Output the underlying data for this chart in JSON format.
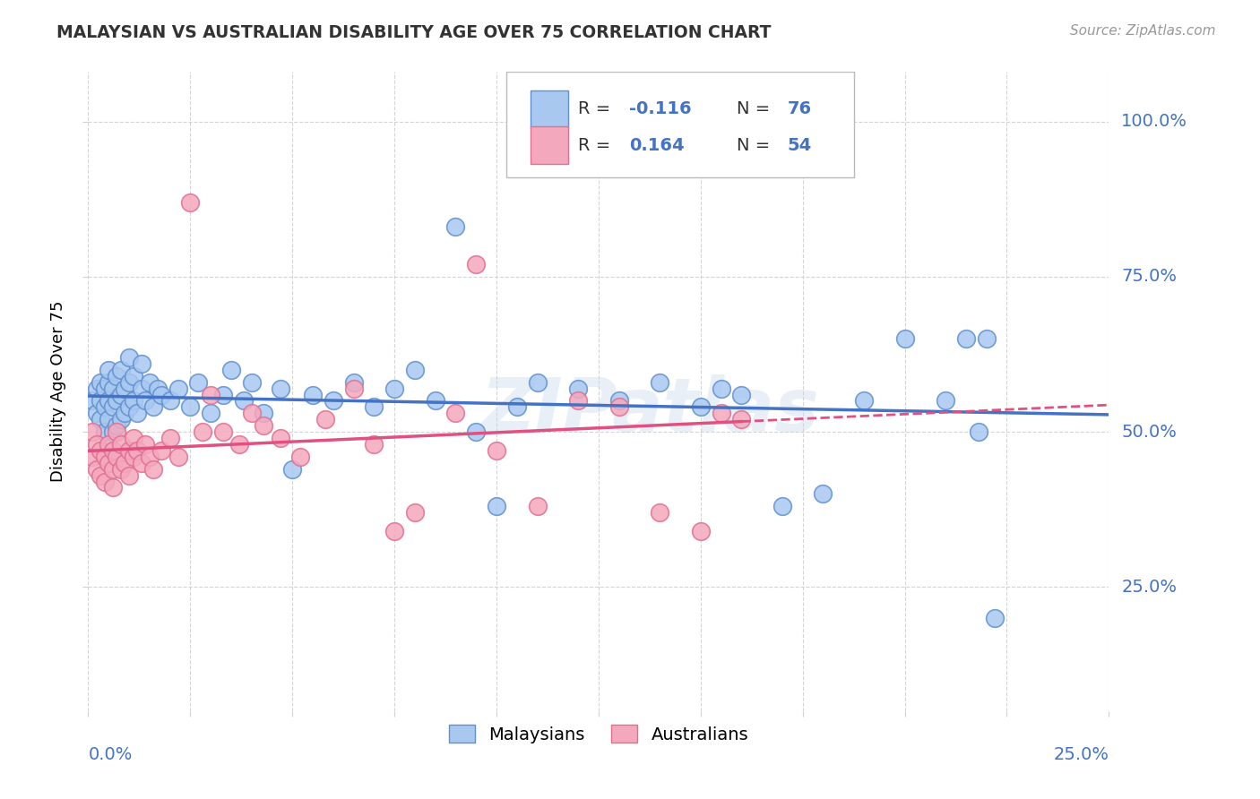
{
  "title": "MALAYSIAN VS AUSTRALIAN DISABILITY AGE OVER 75 CORRELATION CHART",
  "source": "Source: ZipAtlas.com",
  "ylabel": "Disability Age Over 75",
  "ytick_labels": [
    "100.0%",
    "75.0%",
    "50.0%",
    "25.0%"
  ],
  "ytick_values": [
    1.0,
    0.75,
    0.5,
    0.25
  ],
  "xmin": 0.0,
  "xmax": 0.25,
  "ymin": 0.05,
  "ymax": 1.08,
  "malaysian_color": "#a8c8f0",
  "australian_color": "#f4a8be",
  "malaysian_edge_color": "#6090d0",
  "australian_edge_color": "#e07090",
  "malaysian_line_color": "#4472c4",
  "australian_line_color": "#e05080",
  "legend_text_color": "#4472c4",
  "malaysian_R": -0.116,
  "malaysian_N": 76,
  "australian_R": 0.164,
  "australian_N": 54,
  "watermark": "ZIPatlas",
  "background_color": "#ffffff",
  "grid_color": "#d0d0d0",
  "ytick_color": "#4472c4",
  "malaysian_x": [
    0.001,
    0.002,
    0.002,
    0.003,
    0.003,
    0.003,
    0.004,
    0.004,
    0.004,
    0.005,
    0.005,
    0.005,
    0.005,
    0.006,
    0.006,
    0.006,
    0.007,
    0.007,
    0.007,
    0.008,
    0.008,
    0.008,
    0.009,
    0.009,
    0.01,
    0.01,
    0.01,
    0.011,
    0.011,
    0.012,
    0.013,
    0.013,
    0.014,
    0.015,
    0.016,
    0.017,
    0.018,
    0.02,
    0.022,
    0.025,
    0.027,
    0.03,
    0.033,
    0.035,
    0.038,
    0.04,
    0.043,
    0.047,
    0.05,
    0.055,
    0.06,
    0.065,
    0.07,
    0.075,
    0.08,
    0.085,
    0.09,
    0.095,
    0.1,
    0.105,
    0.11,
    0.12,
    0.13,
    0.14,
    0.15,
    0.155,
    0.16,
    0.17,
    0.18,
    0.19,
    0.2,
    0.21,
    0.215,
    0.218,
    0.22,
    0.222
  ],
  "malaysian_y": [
    0.55,
    0.57,
    0.53,
    0.55,
    0.52,
    0.58,
    0.5,
    0.54,
    0.57,
    0.52,
    0.55,
    0.58,
    0.6,
    0.5,
    0.54,
    0.57,
    0.51,
    0.55,
    0.59,
    0.52,
    0.56,
    0.6,
    0.53,
    0.57,
    0.54,
    0.58,
    0.62,
    0.55,
    0.59,
    0.53,
    0.57,
    0.61,
    0.55,
    0.58,
    0.54,
    0.57,
    0.56,
    0.55,
    0.57,
    0.54,
    0.58,
    0.53,
    0.56,
    0.6,
    0.55,
    0.58,
    0.53,
    0.57,
    0.44,
    0.56,
    0.55,
    0.58,
    0.54,
    0.57,
    0.6,
    0.55,
    0.83,
    0.5,
    0.38,
    0.54,
    0.58,
    0.57,
    0.55,
    0.58,
    0.54,
    0.57,
    0.56,
    0.38,
    0.4,
    0.55,
    0.65,
    0.55,
    0.65,
    0.5,
    0.65,
    0.2
  ],
  "australian_x": [
    0.001,
    0.001,
    0.002,
    0.002,
    0.003,
    0.003,
    0.004,
    0.004,
    0.005,
    0.005,
    0.006,
    0.006,
    0.006,
    0.007,
    0.007,
    0.008,
    0.008,
    0.009,
    0.01,
    0.01,
    0.011,
    0.011,
    0.012,
    0.013,
    0.014,
    0.015,
    0.016,
    0.018,
    0.02,
    0.022,
    0.025,
    0.028,
    0.03,
    0.033,
    0.037,
    0.04,
    0.043,
    0.047,
    0.052,
    0.058,
    0.065,
    0.07,
    0.075,
    0.08,
    0.09,
    0.095,
    0.1,
    0.11,
    0.12,
    0.13,
    0.14,
    0.15,
    0.155,
    0.16
  ],
  "australian_y": [
    0.5,
    0.46,
    0.48,
    0.44,
    0.47,
    0.43,
    0.46,
    0.42,
    0.45,
    0.48,
    0.44,
    0.47,
    0.41,
    0.46,
    0.5,
    0.44,
    0.48,
    0.45,
    0.47,
    0.43,
    0.46,
    0.49,
    0.47,
    0.45,
    0.48,
    0.46,
    0.44,
    0.47,
    0.49,
    0.46,
    0.87,
    0.5,
    0.56,
    0.5,
    0.48,
    0.53,
    0.51,
    0.49,
    0.46,
    0.52,
    0.57,
    0.48,
    0.34,
    0.37,
    0.53,
    0.77,
    0.47,
    0.38,
    0.55,
    0.54,
    0.37,
    0.34,
    0.53,
    0.52
  ]
}
